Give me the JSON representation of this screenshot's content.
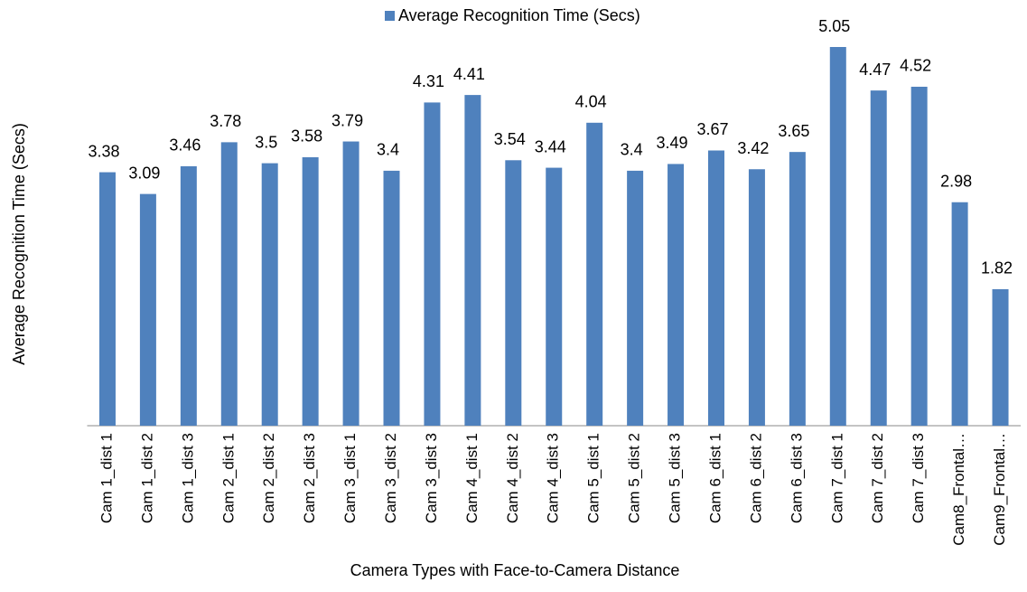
{
  "chart_data": {
    "type": "bar",
    "y_label": "Average Recognition Time (Secs)",
    "x_label": "Camera Types with Face-to-Camera Distance",
    "categories": [
      "Cam 1_dist 1",
      "Cam 1_dist 2",
      "Cam 1_dist 3",
      "Cam 2_dist 1",
      "Cam 2_dist 2",
      "Cam 2_dist 3",
      "Cam 3_dist 1",
      "Cam 3_dist 2",
      "Cam 3_dist 3",
      "Cam 4_dist 1",
      "Cam 4_dist 2",
      "Cam 4_dist 3",
      "Cam 5_dist 1",
      "Cam 5_dist 2",
      "Cam 5_dist 3",
      "Cam 6_dist 1",
      "Cam 6_dist 2",
      "Cam 6_dist 3",
      "Cam 7_dist 1",
      "Cam 7_dist 2",
      "Cam 7_dist 3",
      "Cam8_Frontal…",
      "Cam9_Frontal…"
    ],
    "series": [
      {
        "name": "Average Recognition Time (Secs)",
        "color": "#4f81bd",
        "values": [
          3.38,
          3.09,
          3.46,
          3.78,
          3.5,
          3.58,
          3.79,
          3.4,
          4.31,
          4.41,
          3.54,
          3.44,
          4.04,
          3.4,
          3.49,
          3.67,
          3.42,
          3.65,
          5.05,
          4.47,
          4.52,
          2.98,
          1.82
        ]
      }
    ],
    "ylim": [
      0,
      5.05
    ],
    "legend": "top"
  }
}
